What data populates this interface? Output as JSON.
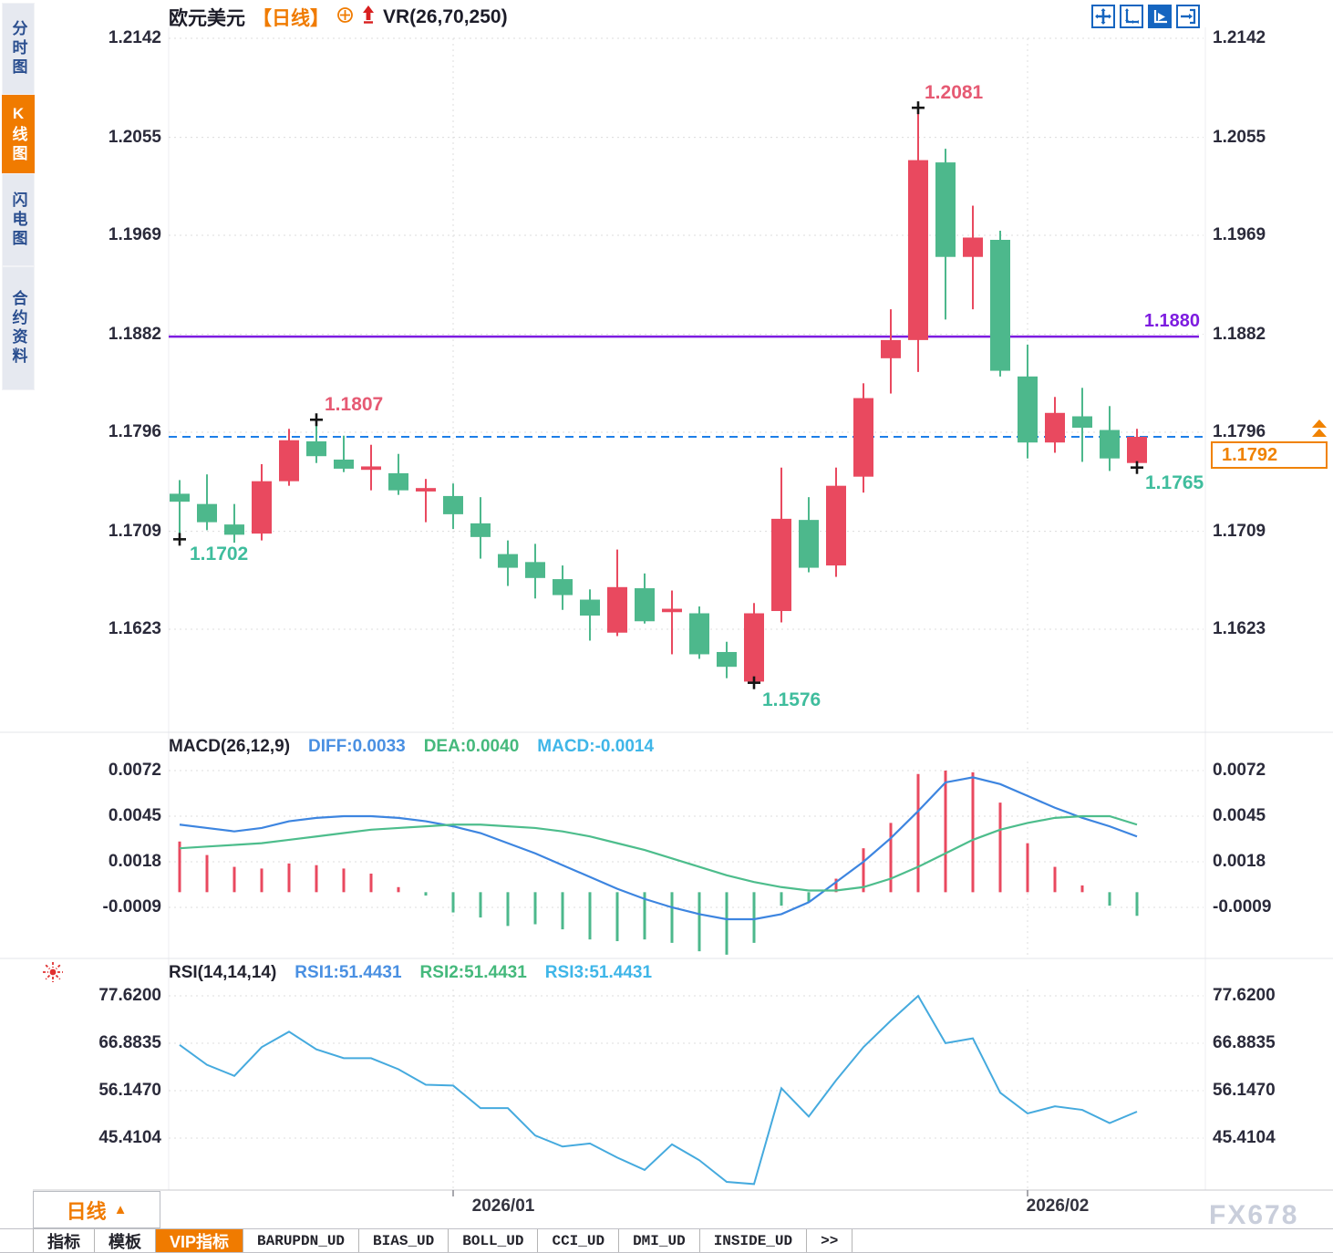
{
  "header": {
    "symbol": "欧元美元",
    "period_tag": "【日线】",
    "indicator_label": "VR(26,70,250)"
  },
  "sidebar": {
    "items": [
      {
        "label": "分时图",
        "active": false
      },
      {
        "label": "K线图",
        "active": true
      },
      {
        "label": "闪电图",
        "active": false
      },
      {
        "label": "合约资料",
        "active": false
      }
    ]
  },
  "toolbar": {
    "icons": [
      "pan-crosshair",
      "axis-scale",
      "axis-play",
      "pan-right"
    ]
  },
  "price_axis": {
    "ticks_text": [
      "1.2142",
      "1.2055",
      "1.1969",
      "1.1882",
      "1.1796",
      "1.1709",
      "1.1623"
    ]
  },
  "annotations": {
    "high": "1.2081",
    "swing_high": "1.1807",
    "early_low": "1.1702",
    "bottom_low": "1.1576",
    "recent_low": "1.1765",
    "hline": "1.1880",
    "last_price": "1.1792"
  },
  "macd_panel": {
    "title": "MACD(26,12,9)",
    "diff": "DIFF:0.0033",
    "dea": "DEA:0.0040",
    "macd": "MACD:-0.0014",
    "ticks_text": [
      "0.0072",
      "0.0045",
      "0.0018",
      "-0.0009"
    ]
  },
  "rsi_panel": {
    "title": "RSI(14,14,14)",
    "rsi1": "RSI1:51.4431",
    "rsi2": "RSI2:51.4431",
    "rsi3": "RSI3:51.4431",
    "ticks_text": [
      "77.6200",
      "66.8835",
      "56.1470",
      "45.4104"
    ]
  },
  "bottom": {
    "timeframe": "日线",
    "timeframe_arrow": "▲",
    "x_labels": [
      "2026/01",
      "2026/02"
    ],
    "tabs": [
      {
        "label": "指标",
        "active": false,
        "mono": false
      },
      {
        "label": "模板",
        "active": false,
        "mono": false
      },
      {
        "label": "VIP指标",
        "active": true,
        "mono": false
      },
      {
        "label": "BARUPDN_UD",
        "active": false,
        "mono": true
      },
      {
        "label": "BIAS_UD",
        "active": false,
        "mono": true
      },
      {
        "label": "BOLL_UD",
        "active": false,
        "mono": true
      },
      {
        "label": "CCI_UD",
        "active": false,
        "mono": true
      },
      {
        "label": "DMI_UD",
        "active": false,
        "mono": true
      },
      {
        "label": "INSIDE_UD",
        "active": false,
        "mono": true
      },
      {
        "label": ">>",
        "active": false,
        "mono": true
      }
    ]
  },
  "watermark": "FX678",
  "colors": {
    "up": "#e9495f",
    "down": "#4db88c",
    "accent_orange": "#f07b00",
    "hline_purple": "#7d1ce0",
    "price_line_blue": "#1d7fe8",
    "label_pink": "#e65a73",
    "label_green": "#3fbd9d",
    "diff_blue": "#3d85e0",
    "dea_green": "#4dbd8c",
    "rsi_line": "#45aade",
    "grid": "#dcdcdc",
    "marker": "#151515"
  },
  "chart_data": {
    "type": "candlestick",
    "title": "欧元美元 日线 (EUR/USD daily)",
    "price_ticks": [
      1.2142,
      1.2055,
      1.1969,
      1.1882,
      1.1796,
      1.1709,
      1.1623
    ],
    "hline": 1.188,
    "last_price": 1.1792,
    "x_labels": [
      "2026/01",
      "2026/02"
    ],
    "month_marks": [
      {
        "index": 10
      },
      {
        "index": 31
      }
    ],
    "markers": [
      {
        "index": 0,
        "price": 1.1702
      },
      {
        "index": 5,
        "price": 1.1807
      },
      {
        "index": 21,
        "price": 1.1576
      },
      {
        "index": 27,
        "price": 1.2081
      },
      {
        "index": 35,
        "price": 1.1765
      }
    ],
    "candles": [
      {
        "o": 1.1742,
        "h": 1.1754,
        "l": 1.1702,
        "c": 1.1735
      },
      {
        "o": 1.1733,
        "h": 1.1759,
        "l": 1.171,
        "c": 1.1717
      },
      {
        "o": 1.1715,
        "h": 1.1733,
        "l": 1.1699,
        "c": 1.1706
      },
      {
        "o": 1.1707,
        "h": 1.1768,
        "l": 1.1701,
        "c": 1.1753
      },
      {
        "o": 1.1753,
        "h": 1.1799,
        "l": 1.1749,
        "c": 1.1789
      },
      {
        "o": 1.1788,
        "h": 1.1807,
        "l": 1.1769,
        "c": 1.1775
      },
      {
        "o": 1.1772,
        "h": 1.1793,
        "l": 1.1761,
        "c": 1.1764
      },
      {
        "o": 1.1763,
        "h": 1.1785,
        "l": 1.1745,
        "c": 1.1766
      },
      {
        "o": 1.176,
        "h": 1.1777,
        "l": 1.1741,
        "c": 1.1745
      },
      {
        "o": 1.1744,
        "h": 1.1755,
        "l": 1.1717,
        "c": 1.1747
      },
      {
        "o": 1.174,
        "h": 1.1751,
        "l": 1.1711,
        "c": 1.1724
      },
      {
        "o": 1.1716,
        "h": 1.1739,
        "l": 1.1685,
        "c": 1.1704
      },
      {
        "o": 1.1689,
        "h": 1.1701,
        "l": 1.1661,
        "c": 1.1677
      },
      {
        "o": 1.1682,
        "h": 1.1698,
        "l": 1.165,
        "c": 1.1668
      },
      {
        "o": 1.1667,
        "h": 1.1679,
        "l": 1.164,
        "c": 1.1653
      },
      {
        "o": 1.1649,
        "h": 1.1658,
        "l": 1.1613,
        "c": 1.1635
      },
      {
        "o": 1.162,
        "h": 1.1693,
        "l": 1.1617,
        "c": 1.166
      },
      {
        "o": 1.1659,
        "h": 1.1672,
        "l": 1.1628,
        "c": 1.163
      },
      {
        "o": 1.1638,
        "h": 1.1657,
        "l": 1.1601,
        "c": 1.1641
      },
      {
        "o": 1.1637,
        "h": 1.1643,
        "l": 1.1597,
        "c": 1.1601
      },
      {
        "o": 1.1603,
        "h": 1.1612,
        "l": 1.158,
        "c": 1.159
      },
      {
        "o": 1.1577,
        "h": 1.1646,
        "l": 1.1576,
        "c": 1.1637
      },
      {
        "o": 1.1639,
        "h": 1.1765,
        "l": 1.1629,
        "c": 1.172
      },
      {
        "o": 1.1719,
        "h": 1.1739,
        "l": 1.1673,
        "c": 1.1677
      },
      {
        "o": 1.1679,
        "h": 1.1765,
        "l": 1.1669,
        "c": 1.1749
      },
      {
        "o": 1.1757,
        "h": 1.1839,
        "l": 1.1743,
        "c": 1.1826
      },
      {
        "o": 1.1861,
        "h": 1.1904,
        "l": 1.183,
        "c": 1.1877
      },
      {
        "o": 1.1877,
        "h": 1.2081,
        "l": 1.1849,
        "c": 1.2035
      },
      {
        "o": 1.2033,
        "h": 1.2045,
        "l": 1.1895,
        "c": 1.195
      },
      {
        "o": 1.195,
        "h": 1.1995,
        "l": 1.1904,
        "c": 1.1967
      },
      {
        "o": 1.1965,
        "h": 1.1973,
        "l": 1.1845,
        "c": 1.185
      },
      {
        "o": 1.1845,
        "h": 1.1873,
        "l": 1.1773,
        "c": 1.1787
      },
      {
        "o": 1.1787,
        "h": 1.1827,
        "l": 1.1778,
        "c": 1.1813
      },
      {
        "o": 1.181,
        "h": 1.1835,
        "l": 1.177,
        "c": 1.18
      },
      {
        "o": 1.1798,
        "h": 1.1819,
        "l": 1.1762,
        "c": 1.1773
      },
      {
        "o": 1.1769,
        "h": 1.1799,
        "l": 1.1765,
        "c": 1.1792
      }
    ],
    "macd": {
      "params": "26,12,9",
      "diff_last": 0.0033,
      "dea_last": 0.004,
      "macd_last": -0.0014,
      "ticks": [
        0.0072,
        0.0045,
        0.0018,
        -0.0009
      ],
      "hist": [
        0.003,
        0.0022,
        0.0015,
        0.0014,
        0.0017,
        0.0016,
        0.0014,
        0.0011,
        0.0003,
        -0.0002,
        -0.0012,
        -0.0015,
        -0.002,
        -0.0019,
        -0.0022,
        -0.0028,
        -0.0029,
        -0.0028,
        -0.003,
        -0.0035,
        -0.0037,
        -0.003,
        -0.0008,
        -0.0006,
        0.0008,
        0.0026,
        0.0041,
        0.007,
        0.0072,
        0.0071,
        0.0053,
        0.0029,
        0.0015,
        0.0004,
        -0.0008,
        -0.0014
      ],
      "diff": [
        0.004,
        0.0038,
        0.0036,
        0.0038,
        0.0042,
        0.0044,
        0.0045,
        0.0045,
        0.0044,
        0.0042,
        0.0039,
        0.0035,
        0.0029,
        0.0023,
        0.0016,
        0.0009,
        0.0002,
        -0.0004,
        -0.0009,
        -0.0013,
        -0.0016,
        -0.0016,
        -0.0013,
        -0.0006,
        0.0006,
        0.0018,
        0.0032,
        0.0048,
        0.0065,
        0.0068,
        0.0064,
        0.0057,
        0.005,
        0.0044,
        0.0039,
        0.0033
      ],
      "dea": [
        0.0026,
        0.0027,
        0.0028,
        0.0029,
        0.0031,
        0.0033,
        0.0035,
        0.0037,
        0.0038,
        0.0039,
        0.004,
        0.004,
        0.0039,
        0.0038,
        0.0036,
        0.0033,
        0.0029,
        0.0025,
        0.002,
        0.0015,
        0.001,
        0.0006,
        0.0003,
        0.0001,
        0.0001,
        0.0003,
        0.0008,
        0.0015,
        0.0023,
        0.0031,
        0.0037,
        0.0041,
        0.0044,
        0.0045,
        0.0045,
        0.004
      ]
    },
    "rsi": {
      "params": "14,14,14",
      "last": 51.4431,
      "ticks": [
        77.62,
        66.8835,
        56.147,
        45.4104
      ],
      "values": [
        66.5,
        62.0,
        59.5,
        66.0,
        69.5,
        65.5,
        63.5,
        63.5,
        61.0,
        57.5,
        57.3,
        52.2,
        52.2,
        46.0,
        43.5,
        44.2,
        41.0,
        38.2,
        44.0,
        40.4,
        35.5,
        35.0,
        56.7,
        50.3,
        58.5,
        66.0,
        72.0,
        77.6,
        66.9,
        68.0,
        55.7,
        51.0,
        52.6,
        51.8,
        48.8,
        51.4
      ]
    }
  }
}
